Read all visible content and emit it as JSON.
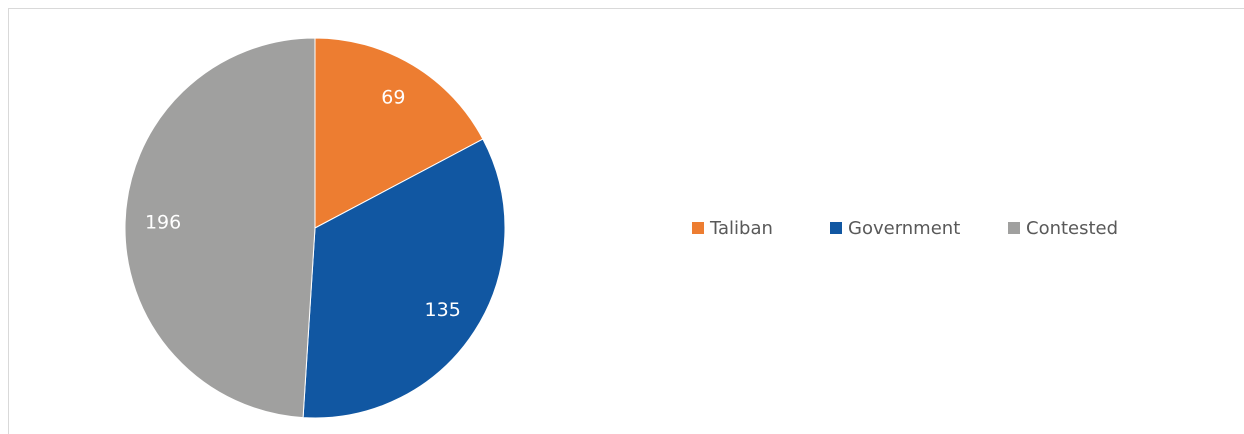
{
  "chart_data": {
    "type": "pie",
    "categories": [
      "Taliban",
      "Government",
      "Contested"
    ],
    "values": [
      69,
      135,
      196
    ],
    "colors": [
      "#ed7d31",
      "#1157a2",
      "#a0a09f"
    ],
    "legend": "right"
  }
}
